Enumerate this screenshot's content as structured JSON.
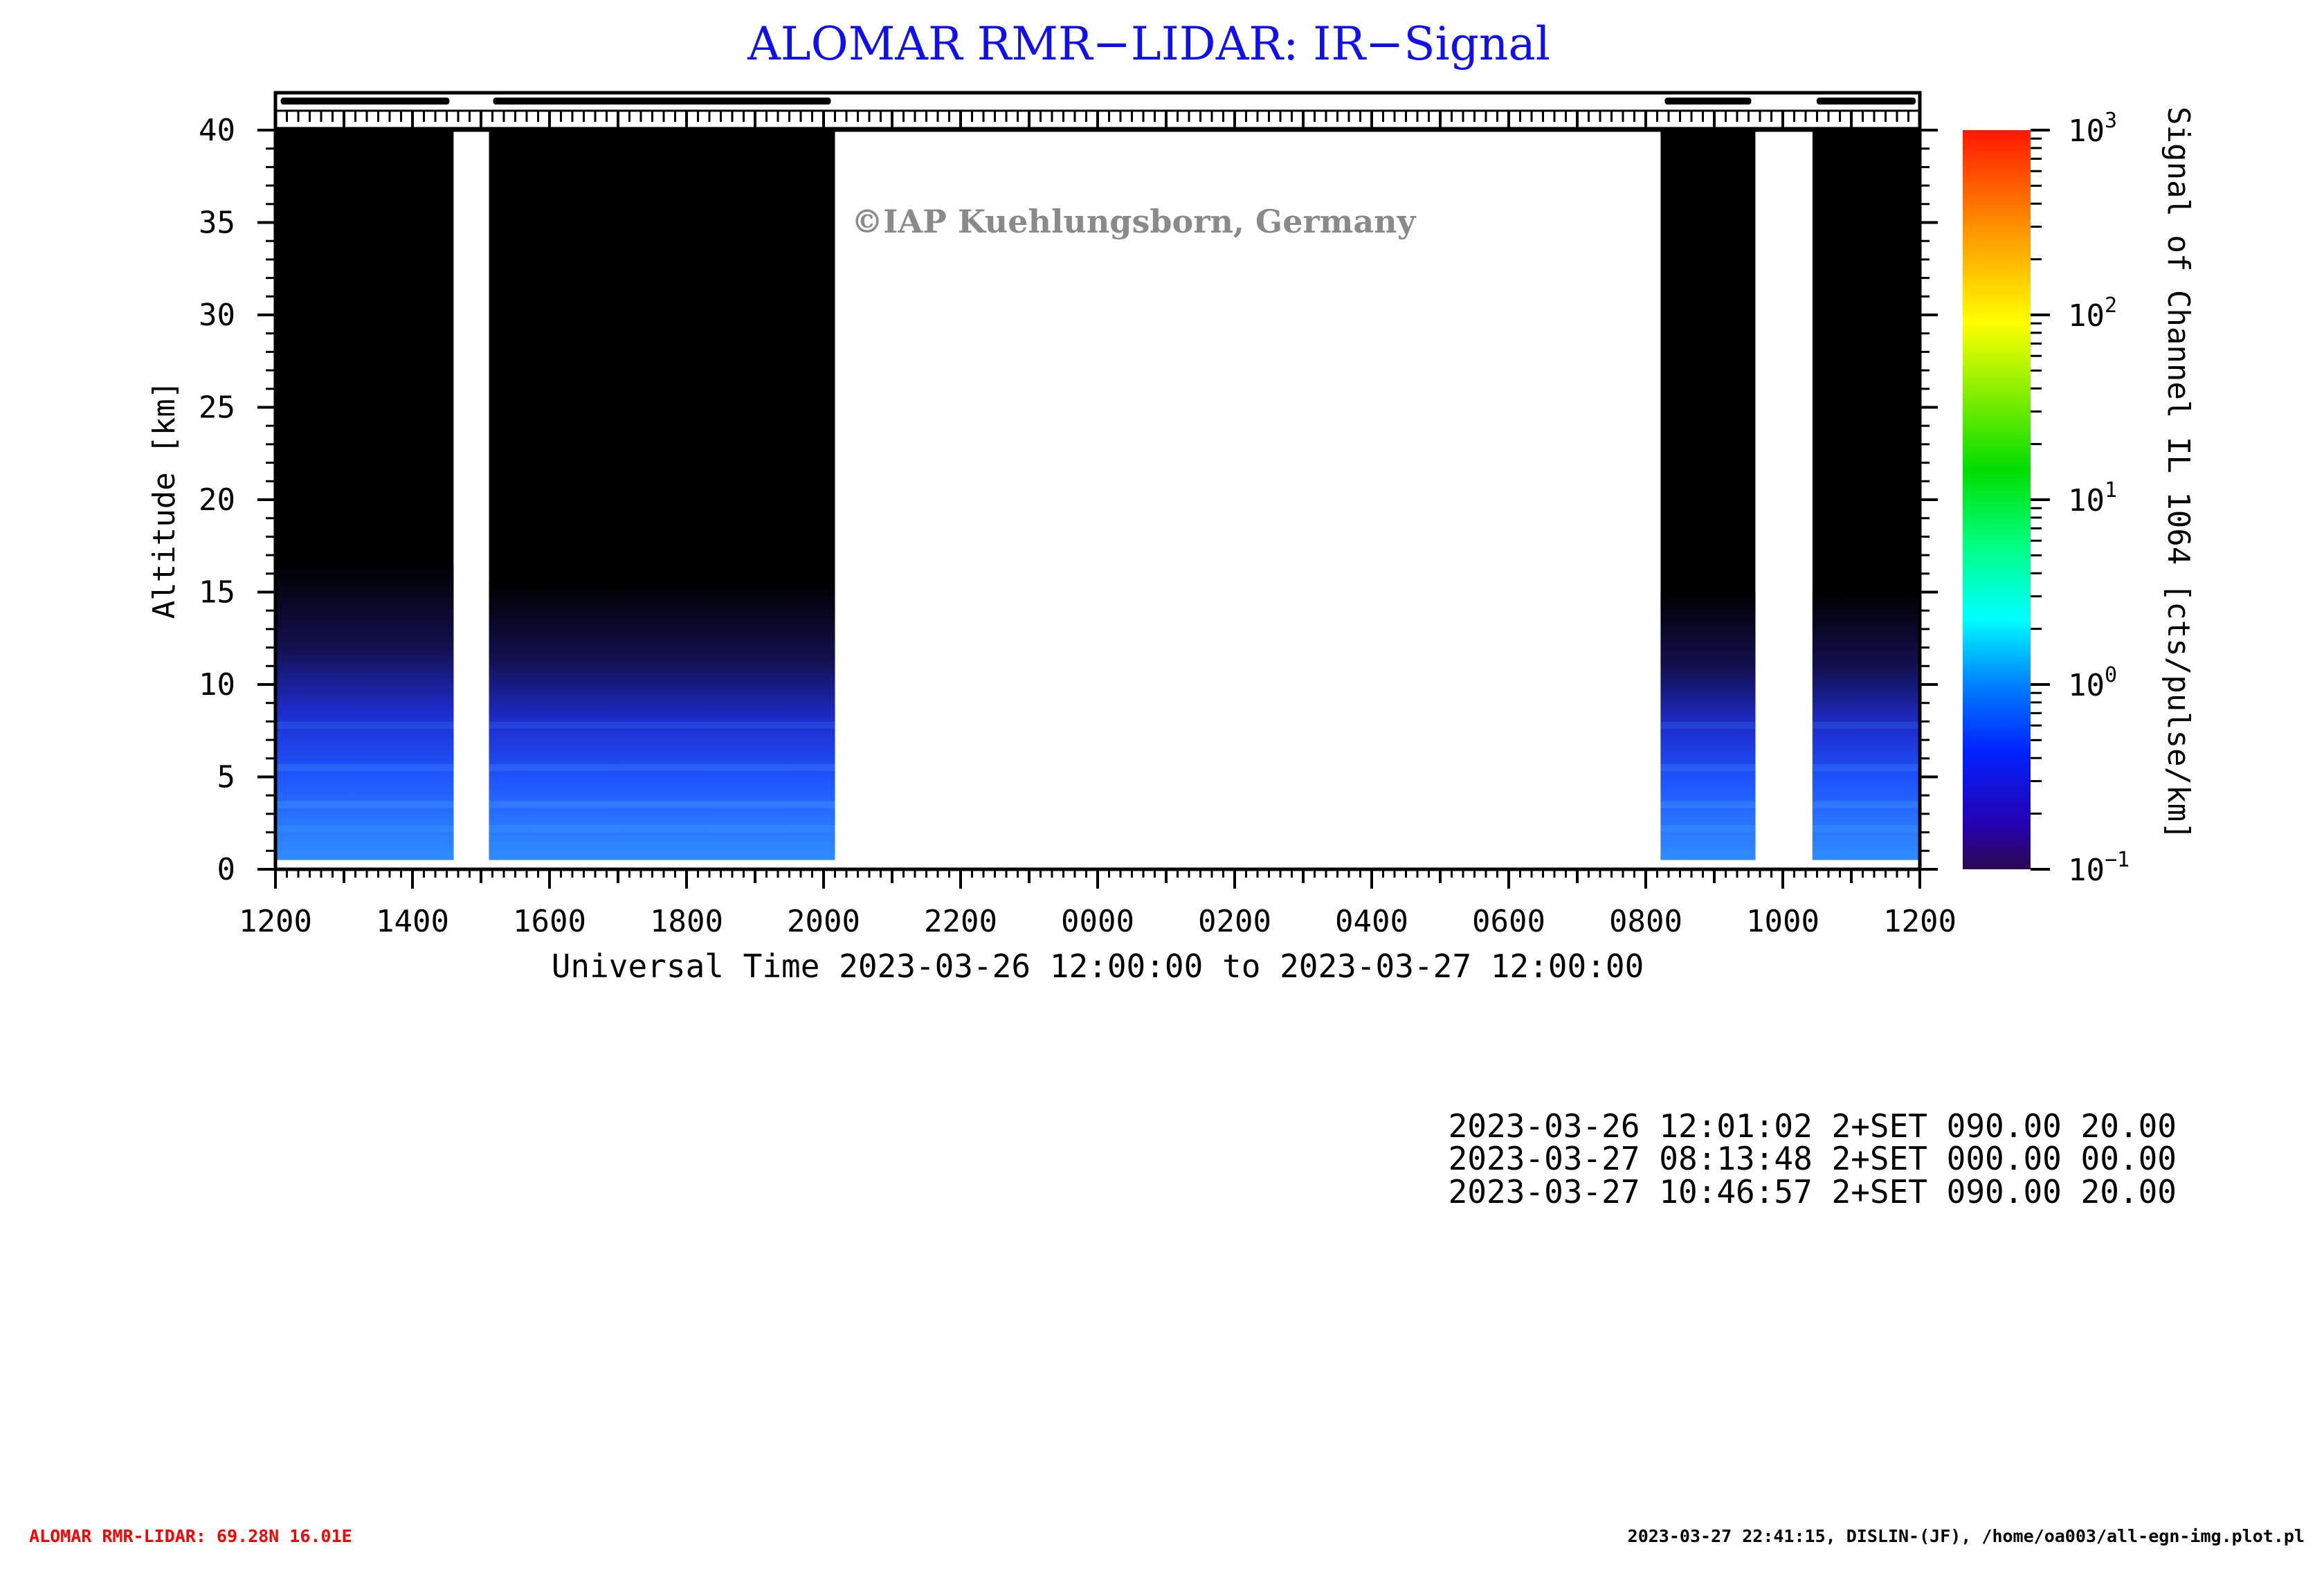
{
  "title": "ALOMAR RMR−LIDAR: IR−Signal",
  "watermark": "©IAP Kuehlungsborn, Germany",
  "colors": {
    "title": "#1010ee",
    "footer_left": "#ff0000",
    "watermark": "#8a8a8a"
  },
  "chart_data": {
    "type": "heatmap",
    "title": "ALOMAR RMR−LIDAR: IR−Signal",
    "xlabel": "Universal Time 2023-03-26 12:00:00 to 2023-03-27 12:00:00",
    "ylabel": "Altitude [km]",
    "colorbar_label": "Signal of Channel IL 1064 [cts/pulse/km]",
    "x_ticks": [
      "1200",
      "1400",
      "1600",
      "1800",
      "2000",
      "2200",
      "0000",
      "0200",
      "0400",
      "0600",
      "0800",
      "1000",
      "1200"
    ],
    "xlim_hours_since_start": [
      0,
      24
    ],
    "y_ticks": [
      "0",
      "5",
      "10",
      "15",
      "20",
      "25",
      "30",
      "35",
      "40"
    ],
    "ylim": [
      0,
      40
    ],
    "colorbar_ticks": [
      {
        "base": "10",
        "exp": "3"
      },
      {
        "base": "10",
        "exp": "2"
      },
      {
        "base": "10",
        "exp": "1"
      },
      {
        "base": "10",
        "exp": "0"
      },
      {
        "base": "10",
        "exp": "−1"
      }
    ],
    "color_scale": "log",
    "color_range": [
      0.1,
      1000
    ],
    "measurement_blocks": [
      {
        "start": "2023-03-26 12:01",
        "end": "2023-03-26 14:36",
        "signal_top_km": 16.5
      },
      {
        "start": "2023-03-26 15:07",
        "end": "2023-03-26 20:10",
        "signal_top_km": 15.5
      },
      {
        "start": "2023-03-27 08:13",
        "end": "2023-03-27 09:36",
        "signal_top_km": 15.0
      },
      {
        "start": "2023-03-27 10:26",
        "end": "2023-03-27 12:00",
        "signal_top_km": 15.0
      }
    ]
  },
  "info_lines": [
    "2023-03-26 12:01:02 2+SET 090.00 20.00",
    "2023-03-27 08:13:48 2+SET 000.00 00.00",
    "2023-03-27 10:46:57 2+SET 090.00 20.00"
  ],
  "footer": {
    "left": "ALOMAR RMR-LIDAR: 69.28N 16.01E",
    "right": "2023-03-27 22:41:15, DISLIN-(JF), /home/oa003/all-egn-img.plot.pl"
  }
}
